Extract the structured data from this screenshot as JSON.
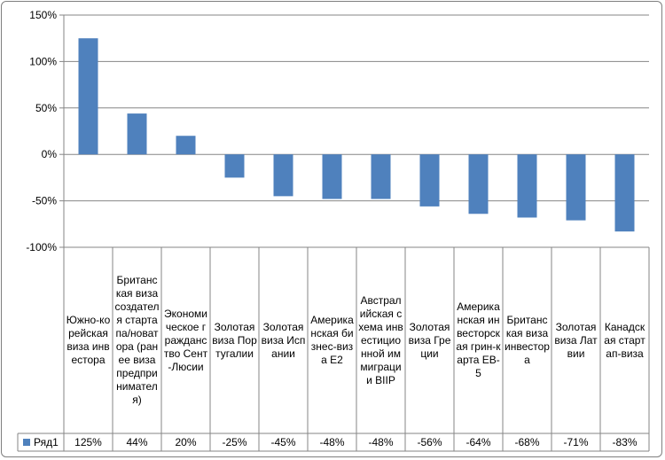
{
  "chart_data": {
    "type": "bar",
    "categories": [
      "Южно-корейская виза инвестора",
      "Британская виза создателя стартапа/новатора (ранее виза предпринимателя)",
      "Экономическое гражданство Сент-Люсии",
      "Золотая виза Португалии",
      "Золотая виза Испании",
      "Американская бизнес-виза Е2",
      "Австралийская схема инвестиционной иммиграции BIIP",
      "Золотая виза Греции",
      "Американская инвесторская грин-карта EB-5",
      "Британская виза инвестора",
      "Золотая виза Латвии",
      "Канадская стартап-виза"
    ],
    "series": [
      {
        "name": "Ряд1",
        "values": [
          125,
          44,
          20,
          -25,
          -45,
          -48,
          -48,
          -56,
          -64,
          -68,
          -71,
          -83
        ],
        "labels": [
          "125%",
          "44%",
          "20%",
          "-25%",
          "-45%",
          "-48%",
          "-48%",
          "-56%",
          "-64%",
          "-68%",
          "-71%",
          "-83%"
        ],
        "color": "#4f81bd"
      }
    ],
    "yticks": [
      "150%",
      "100%",
      "50%",
      "0%",
      "-50%",
      "-100%"
    ],
    "ylim": [
      -100,
      150
    ],
    "grid": true,
    "legend": "bottom-left data table"
  }
}
